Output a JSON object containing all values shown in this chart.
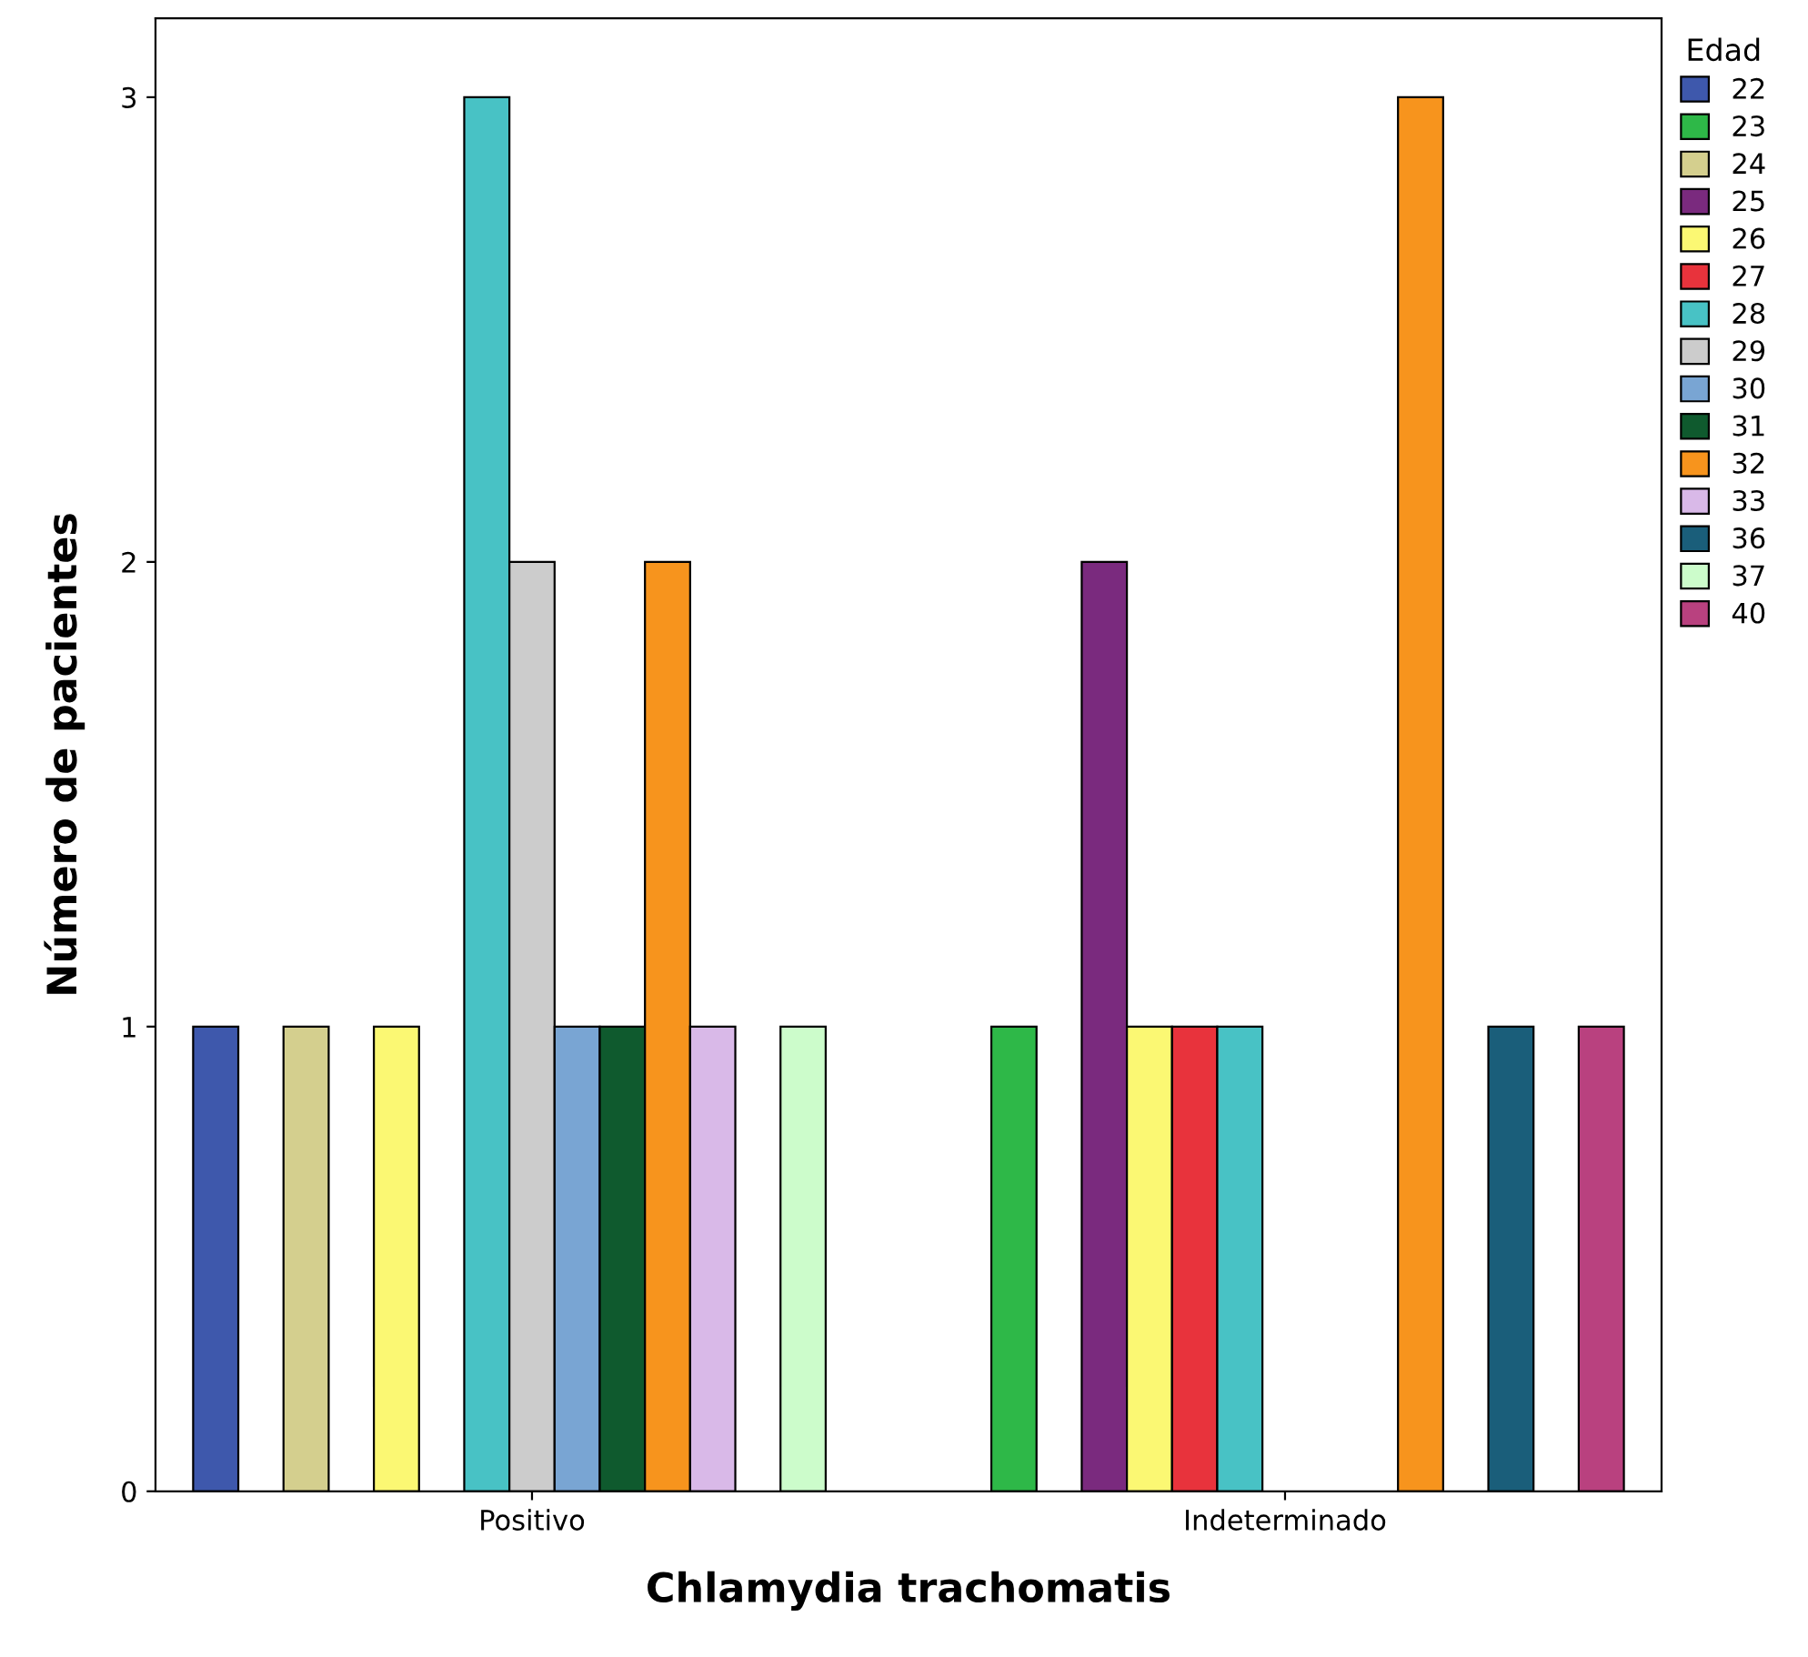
{
  "chart_data": {
    "type": "bar",
    "xlabel": "Chlamydia trachomatis",
    "ylabel": "Número de pacientes",
    "legend_title": "Edad",
    "categories": [
      "Positivo",
      "Indeterminado"
    ],
    "series": [
      {
        "name": "22",
        "color": "#3e58ac",
        "values": [
          1,
          null
        ]
      },
      {
        "name": "23",
        "color": "#2eb848",
        "values": [
          null,
          1
        ]
      },
      {
        "name": "24",
        "color": "#d4cf8e",
        "values": [
          1,
          null
        ]
      },
      {
        "name": "25",
        "color": "#7a2a7e",
        "values": [
          null,
          2
        ]
      },
      {
        "name": "26",
        "color": "#fbf873",
        "values": [
          1,
          1
        ]
      },
      {
        "name": "27",
        "color": "#e8333c",
        "values": [
          null,
          1
        ]
      },
      {
        "name": "28",
        "color": "#48c2c5",
        "values": [
          3,
          1
        ]
      },
      {
        "name": "29",
        "color": "#cccccc",
        "values": [
          2,
          null
        ]
      },
      {
        "name": "30",
        "color": "#79a5d3",
        "values": [
          1,
          null
        ]
      },
      {
        "name": "31",
        "color": "#0f5a2e",
        "values": [
          1,
          null
        ]
      },
      {
        "name": "32",
        "color": "#f7941d",
        "values": [
          2,
          3
        ]
      },
      {
        "name": "33",
        "color": "#d9b9e8",
        "values": [
          1,
          null
        ]
      },
      {
        "name": "36",
        "color": "#1a5e7a",
        "values": [
          null,
          1
        ]
      },
      {
        "name": "37",
        "color": "#ccfccb",
        "values": [
          1,
          null
        ]
      },
      {
        "name": "40",
        "color": "#b9417f",
        "values": [
          null,
          1
        ]
      }
    ],
    "ylim": [
      0,
      3.17
    ],
    "yticks": [
      0,
      1,
      2,
      3
    ],
    "grid": false,
    "legend": "top right"
  }
}
